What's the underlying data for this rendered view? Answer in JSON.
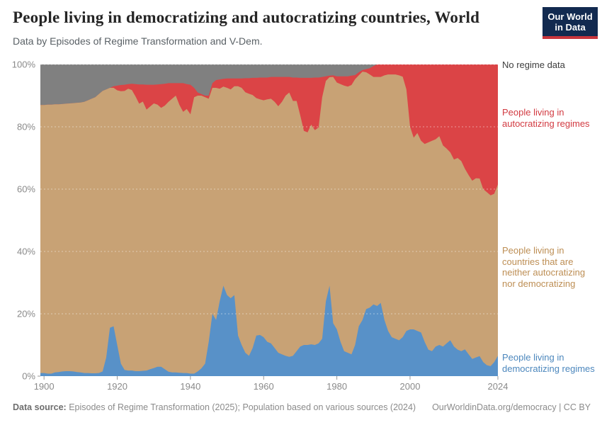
{
  "header": {
    "title": "People living in democratizing and autocratizing countries, World",
    "subtitle": "Data by Episodes of Regime Transformation and V-Dem.",
    "logo_line1": "Our World",
    "logo_line2": "in Data"
  },
  "legend": {
    "no_data": "No regime data",
    "autocratizing": "People living in autocratizing regimes",
    "neither": "People living in countries that are neither autocratizing nor democratizing",
    "democratizing": "People living in democratizing regimes"
  },
  "footer": {
    "source_label": "Data source:",
    "source_text": " Episodes of Regime Transformation (2025); Population based on various sources (2024)",
    "link": "OurWorldinData.org/democracy",
    "separator": " | ",
    "license": "CC BY"
  },
  "colors": {
    "democratizing": "#5891c8",
    "neither": "#c8a275",
    "autocratizing": "#db4446",
    "no_data": "#808080",
    "legend_democratizing_text": "#4c87bd",
    "legend_neither_text": "#bd8e54",
    "legend_autocratizing_text": "#d23a41",
    "legend_no_data_text": "#3d3d3d",
    "axis_text": "#8a8a8a",
    "tick": "#999999"
  },
  "chart_data": {
    "type": "area",
    "stacked": true,
    "normalized_percent": true,
    "title": "People living in democratizing and autocratizing countries, World",
    "xlabel": "",
    "ylabel": "",
    "ylim": [
      0,
      100
    ],
    "grid": "dashed-horizontal",
    "legend_position": "right",
    "xticks": [
      1900,
      1920,
      1940,
      1960,
      1980,
      2000,
      2024
    ],
    "yticks": [
      0,
      20,
      40,
      60,
      80,
      100
    ],
    "ytick_suffix": "%",
    "x": [
      1899,
      1900,
      1901,
      1902,
      1903,
      1904,
      1905,
      1906,
      1907,
      1908,
      1909,
      1910,
      1911,
      1912,
      1913,
      1914,
      1915,
      1916,
      1917,
      1918,
      1919,
      1920,
      1921,
      1922,
      1923,
      1924,
      1925,
      1926,
      1927,
      1928,
      1929,
      1930,
      1931,
      1932,
      1933,
      1934,
      1935,
      1936,
      1937,
      1938,
      1939,
      1940,
      1941,
      1942,
      1943,
      1944,
      1945,
      1946,
      1947,
      1948,
      1949,
      1950,
      1951,
      1952,
      1953,
      1954,
      1955,
      1956,
      1957,
      1958,
      1959,
      1960,
      1961,
      1962,
      1963,
      1964,
      1965,
      1966,
      1967,
      1968,
      1969,
      1970,
      1971,
      1972,
      1973,
      1974,
      1975,
      1976,
      1977,
      1978,
      1979,
      1980,
      1981,
      1982,
      1983,
      1984,
      1985,
      1986,
      1987,
      1988,
      1989,
      1990,
      1991,
      1992,
      1993,
      1994,
      1995,
      1996,
      1997,
      1998,
      1999,
      2000,
      2001,
      2002,
      2003,
      2004,
      2005,
      2006,
      2007,
      2008,
      2009,
      2010,
      2011,
      2012,
      2013,
      2014,
      2015,
      2016,
      2017,
      2018,
      2019,
      2020,
      2021,
      2022,
      2023,
      2024
    ],
    "series": [
      {
        "name": "People living in democratizing regimes",
        "color": "#5891c8",
        "values": [
          1.0,
          1.0,
          0.8,
          0.8,
          1.2,
          1.3,
          1.5,
          1.6,
          1.6,
          1.5,
          1.3,
          1.2,
          1.0,
          1.0,
          0.9,
          0.9,
          1.0,
          1.5,
          6.0,
          15.5,
          16.0,
          10.0,
          4.0,
          2.0,
          1.8,
          1.8,
          1.6,
          1.6,
          1.7,
          1.8,
          2.2,
          2.6,
          3.0,
          3.0,
          2.2,
          1.4,
          1.2,
          1.2,
          1.1,
          1.0,
          1.0,
          0.8,
          0.8,
          1.5,
          2.5,
          4.0,
          11.0,
          20.0,
          18.0,
          24.0,
          29.0,
          26.0,
          25.0,
          26.0,
          13.0,
          10.0,
          7.5,
          6.5,
          9.0,
          13.0,
          13.2,
          12.5,
          11.0,
          10.5,
          9.0,
          7.5,
          7.0,
          6.5,
          6.2,
          6.5,
          8.0,
          9.5,
          10.0,
          10.0,
          10.2,
          10.0,
          10.5,
          12.0,
          24.0,
          29.0,
          17.0,
          15.0,
          11.0,
          8.0,
          7.5,
          7.0,
          10.0,
          16.0,
          18.0,
          21.5,
          22.0,
          23.0,
          22.5,
          23.5,
          18.0,
          14.5,
          12.5,
          12.0,
          11.5,
          12.5,
          14.5,
          15.0,
          15.0,
          14.5,
          14.0,
          11.0,
          8.5,
          8.0,
          9.5,
          10.0,
          9.5,
          10.5,
          11.5,
          9.5,
          8.5,
          8.0,
          8.6,
          7.0,
          5.5,
          6.0,
          6.4,
          4.5,
          3.5,
          3.2,
          4.5,
          6.5
        ]
      },
      {
        "name": "People living in countries that are neither autocratizing nor democratizing",
        "color": "#c8a275",
        "values": [
          86.0,
          86.0,
          86.3,
          86.3,
          86.0,
          85.9,
          85.8,
          85.8,
          85.9,
          86.1,
          86.4,
          86.6,
          87.0,
          87.5,
          88.1,
          88.6,
          89.5,
          90.0,
          86.0,
          77.0,
          76.5,
          81.7,
          87.4,
          89.5,
          90.4,
          90.0,
          88.1,
          85.8,
          86.4,
          83.7,
          84.3,
          84.9,
          84.1,
          83.1,
          84.6,
          86.6,
          87.8,
          88.8,
          85.9,
          83.8,
          84.7,
          83.2,
          88.7,
          88.5,
          87.5,
          85.5,
          78.0,
          72.5,
          74.5,
          68.2,
          63.9,
          66.5,
          67.0,
          67.0,
          80.0,
          82.5,
          83.6,
          84.1,
          81.2,
          76.2,
          75.6,
          76.0,
          77.8,
          78.5,
          79.0,
          79.1,
          81.0,
          83.5,
          84.8,
          81.8,
          80.3,
          74.2,
          68.7,
          68.2,
          70.5,
          68.9,
          69.3,
          77.5,
          70.7,
          66.9,
          79.0,
          79.2,
          82.7,
          85.2,
          85.4,
          86.4,
          85.3,
          80.5,
          79.7,
          76.0,
          74.8,
          73.0,
          73.5,
          72.5,
          78.5,
          82.3,
          84.3,
          84.8,
          85.0,
          83.6,
          77.5,
          65.0,
          61.5,
          63.5,
          61.5,
          63.5,
          66.5,
          67.5,
          66.5,
          67.0,
          64.5,
          62.5,
          60.3,
          60.0,
          61.5,
          61.0,
          57.9,
          57.5,
          57.2,
          57.5,
          57.0,
          55.5,
          55.5,
          54.8,
          54.0,
          55.0
        ]
      },
      {
        "name": "People living in autocratizing regimes",
        "color": "#db4446",
        "values": [
          0,
          0,
          0,
          0,
          0,
          0,
          0,
          0,
          0,
          0,
          0,
          0,
          0,
          0,
          0,
          0,
          0,
          0,
          0,
          0,
          0.5,
          1.5,
          2.0,
          2.0,
          1.5,
          2.0,
          4.0,
          6.2,
          5.5,
          8.0,
          7.0,
          6.0,
          6.5,
          7.6,
          7.0,
          6.0,
          5.0,
          4.0,
          7.0,
          9.2,
          8.0,
          9.5,
          3.0,
          1.0,
          0.5,
          0.5,
          1.0,
          1.5,
          2.5,
          3.0,
          2.5,
          3.0,
          3.5,
          2.5,
          2.5,
          3.0,
          4.5,
          5.0,
          5.5,
          6.5,
          7.0,
          7.3,
          7.0,
          7.0,
          8.0,
          9.4,
          8.0,
          6.0,
          5.0,
          7.5,
          7.5,
          12.0,
          17.0,
          17.5,
          15.0,
          16.9,
          16.0,
          6.5,
          1.5,
          0.5,
          0.5,
          2.0,
          2.5,
          3.0,
          3.3,
          3.0,
          1.3,
          1.0,
          0.5,
          1.0,
          2.0,
          3.5,
          4.0,
          4.0,
          3.5,
          3.2,
          3.2,
          3.2,
          3.5,
          3.9,
          8.0,
          20.0,
          23.5,
          22.0,
          24.5,
          25.5,
          25.0,
          24.5,
          24.0,
          23.0,
          26.0,
          27.0,
          28.2,
          30.5,
          30.0,
          31.0,
          33.5,
          35.5,
          37.3,
          36.5,
          36.6,
          40.0,
          41.0,
          42.0,
          41.5,
          38.5
        ]
      },
      {
        "name": "No regime data",
        "color": "#808080",
        "values": [
          13.0,
          13.0,
          12.9,
          12.9,
          12.8,
          12.8,
          12.7,
          12.6,
          12.5,
          12.4,
          12.3,
          12.2,
          12.0,
          11.5,
          11.0,
          10.5,
          9.5,
          8.5,
          8.0,
          7.5,
          7.0,
          6.8,
          6.6,
          6.5,
          6.3,
          6.2,
          6.3,
          6.4,
          6.4,
          6.5,
          6.5,
          6.5,
          6.4,
          6.3,
          6.2,
          6.0,
          6.0,
          6.0,
          6.0,
          6.0,
          6.3,
          6.5,
          7.5,
          9.0,
          9.5,
          10.0,
          10.0,
          6.0,
          5.0,
          4.8,
          4.6,
          4.5,
          4.5,
          4.5,
          4.5,
          4.5,
          4.4,
          4.4,
          4.3,
          4.3,
          4.2,
          4.2,
          4.2,
          4.0,
          4.0,
          4.0,
          4.0,
          4.0,
          4.0,
          4.2,
          4.2,
          4.3,
          4.3,
          4.3,
          4.3,
          4.2,
          4.2,
          4.0,
          3.8,
          3.6,
          3.5,
          3.8,
          3.8,
          3.8,
          3.8,
          3.6,
          3.4,
          2.5,
          1.8,
          1.5,
          1.2,
          0.5,
          0,
          0,
          0,
          0,
          0,
          0,
          0,
          0,
          0,
          0,
          0,
          0,
          0,
          0,
          0,
          0,
          0,
          0,
          0,
          0,
          0,
          0,
          0,
          0,
          0,
          0,
          0,
          0,
          0,
          0,
          0,
          0,
          0,
          0
        ]
      }
    ]
  }
}
